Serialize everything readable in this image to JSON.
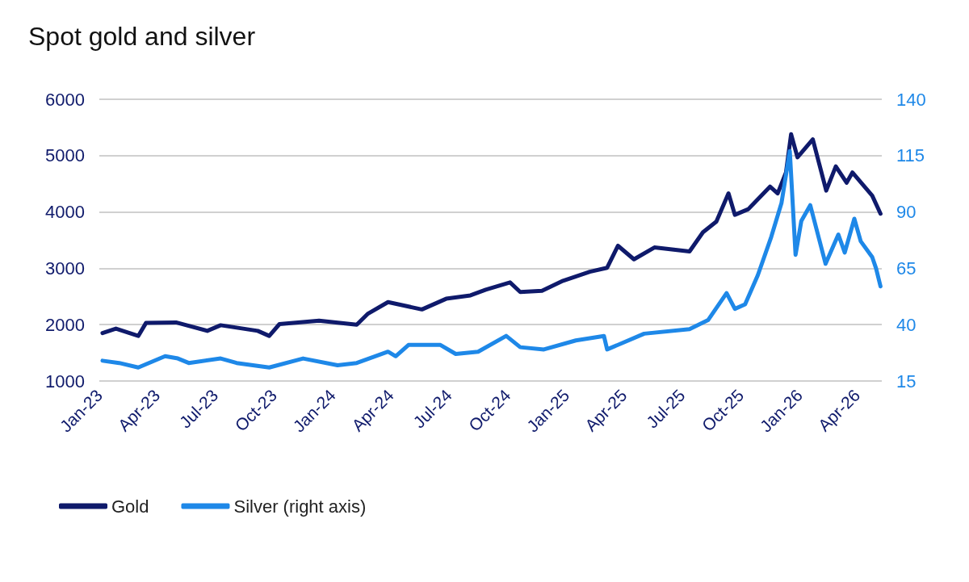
{
  "chart_data": {
    "type": "line",
    "title": "Spot gold and silver",
    "xlim": [
      "2023-01-01",
      "2026-05-10"
    ],
    "xticks": [
      {
        "value": "2023-01-01",
        "label": "Jan-23"
      },
      {
        "value": "2023-04-01",
        "label": "Apr-23"
      },
      {
        "value": "2023-07-01",
        "label": "Jul-23"
      },
      {
        "value": "2023-10-01",
        "label": "Oct-23"
      },
      {
        "value": "2024-01-01",
        "label": "Jan-24"
      },
      {
        "value": "2024-04-01",
        "label": "Apr-24"
      },
      {
        "value": "2024-07-01",
        "label": "Jul-24"
      },
      {
        "value": "2024-10-01",
        "label": "Oct-24"
      },
      {
        "value": "2025-01-01",
        "label": "Jan-25"
      },
      {
        "value": "2025-04-01",
        "label": "Apr-25"
      },
      {
        "value": "2025-07-01",
        "label": "Jul-25"
      },
      {
        "value": "2025-10-01",
        "label": "Oct-25"
      },
      {
        "value": "2026-01-01",
        "label": "Jan-26"
      },
      {
        "value": "2026-04-01",
        "label": "Apr-26"
      }
    ],
    "ylim": [
      1000,
      6000
    ],
    "yticks": [
      1000,
      2000,
      3000,
      4000,
      5000,
      6000
    ],
    "y2lim": [
      15,
      140
    ],
    "y2ticks": [
      15,
      40,
      65,
      90,
      115,
      140
    ],
    "grid": "y",
    "legend": "bottom left",
    "marker": "none",
    "line_style": "solid",
    "series": [
      {
        "name": "Gold",
        "color": "#0f1a6b",
        "x": [
          "2023-01-06",
          "2023-01-27",
          "2023-03-03",
          "2023-03-15",
          "2023-05-01",
          "2023-06-19",
          "2023-07-10",
          "2023-09-06",
          "2023-09-24",
          "2023-10-10",
          "2023-12-11",
          "2024-02-08",
          "2024-02-25",
          "2024-03-28",
          "2024-05-20",
          "2024-06-27",
          "2024-08-04",
          "2024-08-28",
          "2024-10-05",
          "2024-10-21",
          "2024-11-24",
          "2024-12-27",
          "2025-02-07",
          "2025-03-06",
          "2025-03-23",
          "2025-04-17",
          "2025-05-19",
          "2025-07-13",
          "2025-08-03",
          "2025-08-24",
          "2025-09-12",
          "2025-09-22",
          "2025-10-13",
          "2025-11-16",
          "2025-11-28",
          "2025-12-11",
          "2025-12-19",
          "2025-12-29",
          "2026-01-22",
          "2026-02-12",
          "2026-02-27",
          "2026-03-16",
          "2026-03-25",
          "2026-04-25",
          "2026-05-08"
        ],
        "values": [
          1850,
          1930,
          1800,
          2030,
          2040,
          1890,
          1990,
          1890,
          1800,
          2010,
          2070,
          2000,
          2190,
          2400,
          2270,
          2460,
          2520,
          2620,
          2750,
          2580,
          2600,
          2780,
          2940,
          3010,
          3400,
          3160,
          3370,
          3300,
          3640,
          3830,
          4330,
          3950,
          4050,
          4450,
          4330,
          4700,
          5380,
          4970,
          5290,
          4380,
          4810,
          4520,
          4700,
          4290,
          3970
        ]
      },
      {
        "name": "Silver (right axis)",
        "color": "#1e88e8",
        "axis": "y2",
        "x": [
          "2023-01-06",
          "2023-02-01",
          "2023-03-03",
          "2023-04-14",
          "2023-05-04",
          "2023-05-21",
          "2023-07-10",
          "2023-08-04",
          "2023-09-24",
          "2023-11-16",
          "2024-01-09",
          "2024-02-08",
          "2024-03-28",
          "2024-04-09",
          "2024-04-29",
          "2024-06-18",
          "2024-07-12",
          "2024-08-16",
          "2024-09-29",
          "2024-10-21",
          "2024-11-27",
          "2025-01-16",
          "2025-03-01",
          "2025-03-06",
          "2025-05-03",
          "2025-07-13",
          "2025-08-11",
          "2025-09-09",
          "2025-09-22",
          "2025-10-08",
          "2025-10-28",
          "2025-11-18",
          "2025-12-04",
          "2025-12-17",
          "2025-12-26",
          "2026-01-04",
          "2026-01-18",
          "2026-02-11",
          "2026-03-03",
          "2026-03-13",
          "2026-03-28",
          "2026-04-07",
          "2026-04-25",
          "2026-05-01",
          "2026-05-08"
        ],
        "values": [
          24,
          23,
          21,
          26,
          25,
          23,
          25,
          23,
          21,
          25,
          22,
          23,
          28,
          26,
          31,
          31,
          27,
          28,
          35,
          30,
          29,
          33,
          35,
          29,
          36,
          38,
          42,
          54,
          47,
          49,
          62,
          79,
          94,
          117,
          71,
          86,
          93,
          67,
          80,
          72,
          87,
          77,
          70,
          65,
          57
        ]
      }
    ]
  }
}
